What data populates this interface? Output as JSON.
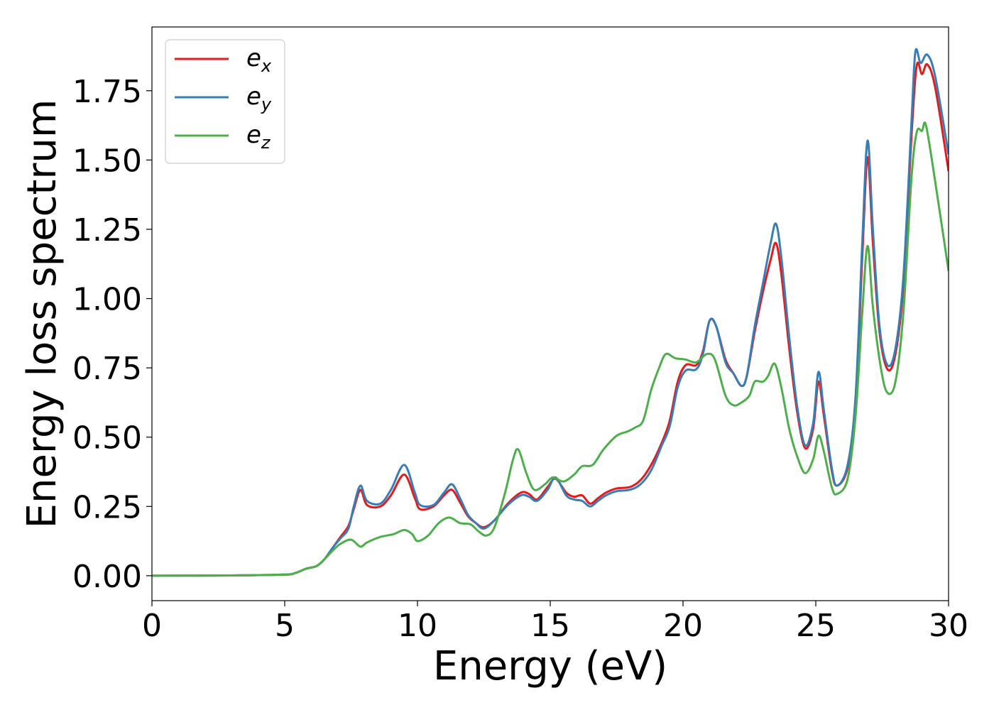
{
  "chart_data": {
    "type": "line",
    "title": "",
    "xlabel": "Energy (eV)",
    "ylabel": "Energy loss spectrum",
    "xlim": [
      0,
      30
    ],
    "ylim": [
      -0.09,
      1.98
    ],
    "xticks": [
      0,
      5,
      10,
      15,
      20,
      25,
      30
    ],
    "yticks": [
      0.0,
      0.25,
      0.5,
      0.75,
      1.0,
      1.25,
      1.5,
      1.75
    ],
    "xtick_labels": [
      "0",
      "5",
      "10",
      "15",
      "20",
      "25",
      "30"
    ],
    "ytick_labels": [
      "0.00",
      "0.25",
      "0.50",
      "0.75",
      "1.00",
      "1.25",
      "1.50",
      "1.75"
    ],
    "grid": false,
    "legend": "top-left",
    "series": [
      {
        "name": "e_x",
        "label_base": "e",
        "label_sub": "x",
        "color": "#e41a1c",
        "points": [
          [
            0,
            0
          ],
          [
            3,
            0.001
          ],
          [
            5,
            0.004
          ],
          [
            5.4,
            0.01
          ],
          [
            5.8,
            0.025
          ],
          [
            6.2,
            0.035
          ],
          [
            6.5,
            0.06
          ],
          [
            6.8,
            0.1
          ],
          [
            7.1,
            0.14
          ],
          [
            7.4,
            0.18
          ],
          [
            7.6,
            0.24
          ],
          [
            7.85,
            0.31
          ],
          [
            8.1,
            0.255
          ],
          [
            8.6,
            0.25
          ],
          [
            9,
            0.29
          ],
          [
            9.5,
            0.365
          ],
          [
            9.9,
            0.28
          ],
          [
            10.1,
            0.24
          ],
          [
            10.6,
            0.25
          ],
          [
            11,
            0.29
          ],
          [
            11.3,
            0.31
          ],
          [
            11.6,
            0.265
          ],
          [
            11.9,
            0.215
          ],
          [
            12.2,
            0.19
          ],
          [
            12.5,
            0.175
          ],
          [
            12.9,
            0.2
          ],
          [
            13.4,
            0.26
          ],
          [
            13.9,
            0.3
          ],
          [
            14.2,
            0.295
          ],
          [
            14.5,
            0.275
          ],
          [
            14.9,
            0.32
          ],
          [
            15.2,
            0.35
          ],
          [
            15.6,
            0.3
          ],
          [
            15.9,
            0.285
          ],
          [
            16.2,
            0.29
          ],
          [
            16.5,
            0.26
          ],
          [
            16.8,
            0.28
          ],
          [
            17.1,
            0.3
          ],
          [
            17.5,
            0.315
          ],
          [
            18,
            0.32
          ],
          [
            18.4,
            0.345
          ],
          [
            18.8,
            0.4
          ],
          [
            19.2,
            0.48
          ],
          [
            19.5,
            0.56
          ],
          [
            19.8,
            0.7
          ],
          [
            20.1,
            0.76
          ],
          [
            20.5,
            0.76
          ],
          [
            20.75,
            0.81
          ],
          [
            21,
            0.92
          ],
          [
            21.25,
            0.9
          ],
          [
            21.6,
            0.78
          ],
          [
            21.9,
            0.73
          ],
          [
            22.2,
            0.685
          ],
          [
            22.4,
            0.72
          ],
          [
            22.7,
            0.88
          ],
          [
            23,
            1.02
          ],
          [
            23.3,
            1.14
          ],
          [
            23.5,
            1.2
          ],
          [
            23.7,
            1.09
          ],
          [
            24,
            0.82
          ],
          [
            24.3,
            0.59
          ],
          [
            24.6,
            0.46
          ],
          [
            24.9,
            0.53
          ],
          [
            25.1,
            0.7
          ],
          [
            25.3,
            0.58
          ],
          [
            25.6,
            0.38
          ],
          [
            25.8,
            0.325
          ],
          [
            26.2,
            0.39
          ],
          [
            26.5,
            0.62
          ],
          [
            26.75,
            1.15
          ],
          [
            26.95,
            1.51
          ],
          [
            27.15,
            1.2
          ],
          [
            27.4,
            0.88
          ],
          [
            27.7,
            0.745
          ],
          [
            28,
            0.8
          ],
          [
            28.3,
            1.05
          ],
          [
            28.6,
            1.58
          ],
          [
            28.8,
            1.84
          ],
          [
            29,
            1.81
          ],
          [
            29.2,
            1.845
          ],
          [
            29.5,
            1.76
          ],
          [
            30,
            1.46
          ]
        ]
      },
      {
        "name": "e_y",
        "label_base": "e",
        "label_sub": "y",
        "color": "#377eb8",
        "points": [
          [
            0,
            0
          ],
          [
            3,
            0.001
          ],
          [
            5,
            0.004
          ],
          [
            5.4,
            0.01
          ],
          [
            5.8,
            0.025
          ],
          [
            6.2,
            0.035
          ],
          [
            6.5,
            0.06
          ],
          [
            6.8,
            0.1
          ],
          [
            7.1,
            0.135
          ],
          [
            7.4,
            0.17
          ],
          [
            7.6,
            0.25
          ],
          [
            7.85,
            0.325
          ],
          [
            8.1,
            0.27
          ],
          [
            8.6,
            0.26
          ],
          [
            9,
            0.31
          ],
          [
            9.5,
            0.4
          ],
          [
            9.9,
            0.3
          ],
          [
            10.1,
            0.255
          ],
          [
            10.6,
            0.255
          ],
          [
            11,
            0.3
          ],
          [
            11.3,
            0.33
          ],
          [
            11.6,
            0.28
          ],
          [
            11.9,
            0.22
          ],
          [
            12.2,
            0.19
          ],
          [
            12.5,
            0.17
          ],
          [
            12.9,
            0.2
          ],
          [
            13.4,
            0.255
          ],
          [
            13.9,
            0.29
          ],
          [
            14.2,
            0.285
          ],
          [
            14.5,
            0.27
          ],
          [
            14.9,
            0.31
          ],
          [
            15.2,
            0.355
          ],
          [
            15.6,
            0.29
          ],
          [
            15.9,
            0.275
          ],
          [
            16.2,
            0.27
          ],
          [
            16.5,
            0.25
          ],
          [
            16.8,
            0.27
          ],
          [
            17.1,
            0.29
          ],
          [
            17.5,
            0.305
          ],
          [
            18,
            0.31
          ],
          [
            18.4,
            0.33
          ],
          [
            18.8,
            0.38
          ],
          [
            19.2,
            0.47
          ],
          [
            19.5,
            0.54
          ],
          [
            19.8,
            0.68
          ],
          [
            20.1,
            0.74
          ],
          [
            20.5,
            0.745
          ],
          [
            20.75,
            0.8
          ],
          [
            21,
            0.92
          ],
          [
            21.25,
            0.9
          ],
          [
            21.6,
            0.77
          ],
          [
            21.9,
            0.73
          ],
          [
            22.2,
            0.685
          ],
          [
            22.4,
            0.72
          ],
          [
            22.7,
            0.9
          ],
          [
            23,
            1.05
          ],
          [
            23.3,
            1.2
          ],
          [
            23.5,
            1.27
          ],
          [
            23.7,
            1.15
          ],
          [
            24,
            0.86
          ],
          [
            24.3,
            0.61
          ],
          [
            24.6,
            0.47
          ],
          [
            24.9,
            0.55
          ],
          [
            25.1,
            0.735
          ],
          [
            25.3,
            0.6
          ],
          [
            25.6,
            0.39
          ],
          [
            25.8,
            0.325
          ],
          [
            26.2,
            0.4
          ],
          [
            26.5,
            0.65
          ],
          [
            26.75,
            1.2
          ],
          [
            26.95,
            1.57
          ],
          [
            27.15,
            1.25
          ],
          [
            27.4,
            0.9
          ],
          [
            27.7,
            0.76
          ],
          [
            28,
            0.82
          ],
          [
            28.3,
            1.08
          ],
          [
            28.6,
            1.63
          ],
          [
            28.75,
            1.89
          ],
          [
            28.95,
            1.85
          ],
          [
            29.2,
            1.88
          ],
          [
            29.5,
            1.8
          ],
          [
            30,
            1.52
          ]
        ]
      },
      {
        "name": "e_z",
        "label_base": "e",
        "label_sub": "z",
        "color": "#4daf4a",
        "points": [
          [
            0,
            0
          ],
          [
            3,
            0.001
          ],
          [
            5,
            0.004
          ],
          [
            5.4,
            0.01
          ],
          [
            5.8,
            0.025
          ],
          [
            6.2,
            0.035
          ],
          [
            6.5,
            0.06
          ],
          [
            6.8,
            0.09
          ],
          [
            7.1,
            0.115
          ],
          [
            7.5,
            0.13
          ],
          [
            7.85,
            0.105
          ],
          [
            8.1,
            0.12
          ],
          [
            8.6,
            0.14
          ],
          [
            9.1,
            0.15
          ],
          [
            9.5,
            0.165
          ],
          [
            9.8,
            0.15
          ],
          [
            10,
            0.125
          ],
          [
            10.4,
            0.145
          ],
          [
            10.8,
            0.19
          ],
          [
            11.2,
            0.21
          ],
          [
            11.6,
            0.19
          ],
          [
            12,
            0.185
          ],
          [
            12.3,
            0.16
          ],
          [
            12.6,
            0.145
          ],
          [
            12.9,
            0.175
          ],
          [
            13.3,
            0.3
          ],
          [
            13.6,
            0.42
          ],
          [
            13.8,
            0.455
          ],
          [
            14.1,
            0.37
          ],
          [
            14.4,
            0.31
          ],
          [
            14.8,
            0.33
          ],
          [
            15.1,
            0.355
          ],
          [
            15.5,
            0.34
          ],
          [
            15.9,
            0.365
          ],
          [
            16.2,
            0.395
          ],
          [
            16.6,
            0.4
          ],
          [
            17,
            0.455
          ],
          [
            17.5,
            0.505
          ],
          [
            17.9,
            0.52
          ],
          [
            18.2,
            0.535
          ],
          [
            18.5,
            0.56
          ],
          [
            18.8,
            0.67
          ],
          [
            19.1,
            0.75
          ],
          [
            19.35,
            0.8
          ],
          [
            19.7,
            0.785
          ],
          [
            20.1,
            0.78
          ],
          [
            20.5,
            0.77
          ],
          [
            20.9,
            0.8
          ],
          [
            21.2,
            0.78
          ],
          [
            21.6,
            0.65
          ],
          [
            21.9,
            0.615
          ],
          [
            22.2,
            0.625
          ],
          [
            22.5,
            0.65
          ],
          [
            22.7,
            0.7
          ],
          [
            23,
            0.7
          ],
          [
            23.2,
            0.72
          ],
          [
            23.45,
            0.765
          ],
          [
            23.7,
            0.68
          ],
          [
            24,
            0.53
          ],
          [
            24.3,
            0.43
          ],
          [
            24.6,
            0.37
          ],
          [
            24.9,
            0.42
          ],
          [
            25.1,
            0.505
          ],
          [
            25.3,
            0.45
          ],
          [
            25.6,
            0.32
          ],
          [
            25.8,
            0.295
          ],
          [
            26.2,
            0.35
          ],
          [
            26.5,
            0.58
          ],
          [
            26.75,
            0.95
          ],
          [
            26.95,
            1.19
          ],
          [
            27.15,
            0.97
          ],
          [
            27.45,
            0.75
          ],
          [
            27.7,
            0.66
          ],
          [
            28,
            0.7
          ],
          [
            28.3,
            0.95
          ],
          [
            28.6,
            1.43
          ],
          [
            28.8,
            1.6
          ],
          [
            29,
            1.605
          ],
          [
            29.15,
            1.625
          ],
          [
            29.5,
            1.42
          ],
          [
            30,
            1.1
          ]
        ]
      }
    ]
  }
}
